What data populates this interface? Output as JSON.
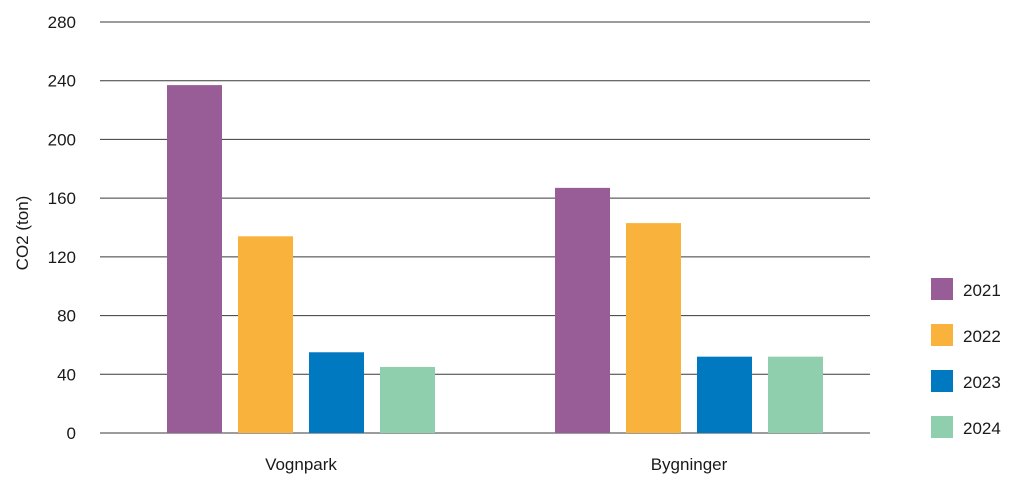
{
  "chart_data": {
    "type": "bar",
    "title": "",
    "xlabel": "",
    "ylabel": "CO2 (ton)",
    "ylim": [
      0,
      280
    ],
    "yticks": [
      0,
      40,
      80,
      120,
      160,
      200,
      240,
      280
    ],
    "grid": true,
    "legend_position": "right",
    "categories": [
      "Vognpark",
      "Bygninger"
    ],
    "series": [
      {
        "name": "2021",
        "color": "#985C96",
        "values": [
          237,
          167
        ]
      },
      {
        "name": "2022",
        "color": "#F9B33C",
        "values": [
          134,
          143
        ]
      },
      {
        "name": "2023",
        "color": "#0079C1",
        "values": [
          55,
          52
        ]
      },
      {
        "name": "2024",
        "color": "#8FCFAE",
        "values": [
          45,
          52
        ]
      }
    ]
  }
}
